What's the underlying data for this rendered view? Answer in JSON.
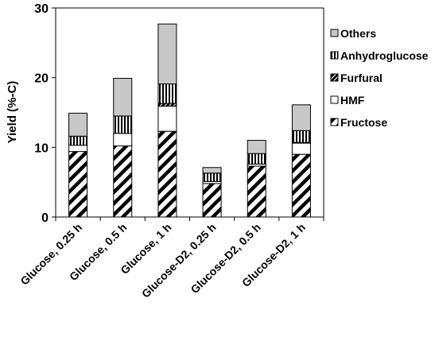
{
  "chart_data": {
    "type": "bar",
    "stacked": true,
    "title": "",
    "xlabel": "",
    "ylabel": "Yield (%-C)",
    "ylim": [
      0,
      30
    ],
    "yticks": [
      0,
      10,
      20,
      30
    ],
    "grid": false,
    "legend_position": "right",
    "categories": [
      "Glucose, 0.25 h",
      "Glucose, 0.5 h",
      "Glucose, 1 h",
      "Glucose-D2, 0.25 h",
      "Glucose-D2, 0.5 h",
      "Glucose-D2, 1 h"
    ],
    "series": [
      {
        "name": "Fructose",
        "pattern": "diagonal-hatch",
        "values": [
          9.4,
          10.2,
          12.3,
          4.8,
          7.3,
          9.0
        ]
      },
      {
        "name": "HMF",
        "pattern": "white",
        "values": [
          0.9,
          1.8,
          3.6,
          0.3,
          0.3,
          1.6
        ]
      },
      {
        "name": "Furfural",
        "pattern": "dark-diagonal",
        "values": [
          0.0,
          0.0,
          0.4,
          0.0,
          0.0,
          0.1
        ]
      },
      {
        "name": "Anhydroglucose",
        "pattern": "vertical-stripes",
        "values": [
          1.3,
          2.5,
          2.8,
          1.2,
          1.5,
          1.7
        ]
      },
      {
        "name": "Others",
        "pattern": "gray",
        "values": [
          3.3,
          5.4,
          8.6,
          0.8,
          1.9,
          3.7
        ]
      }
    ]
  }
}
